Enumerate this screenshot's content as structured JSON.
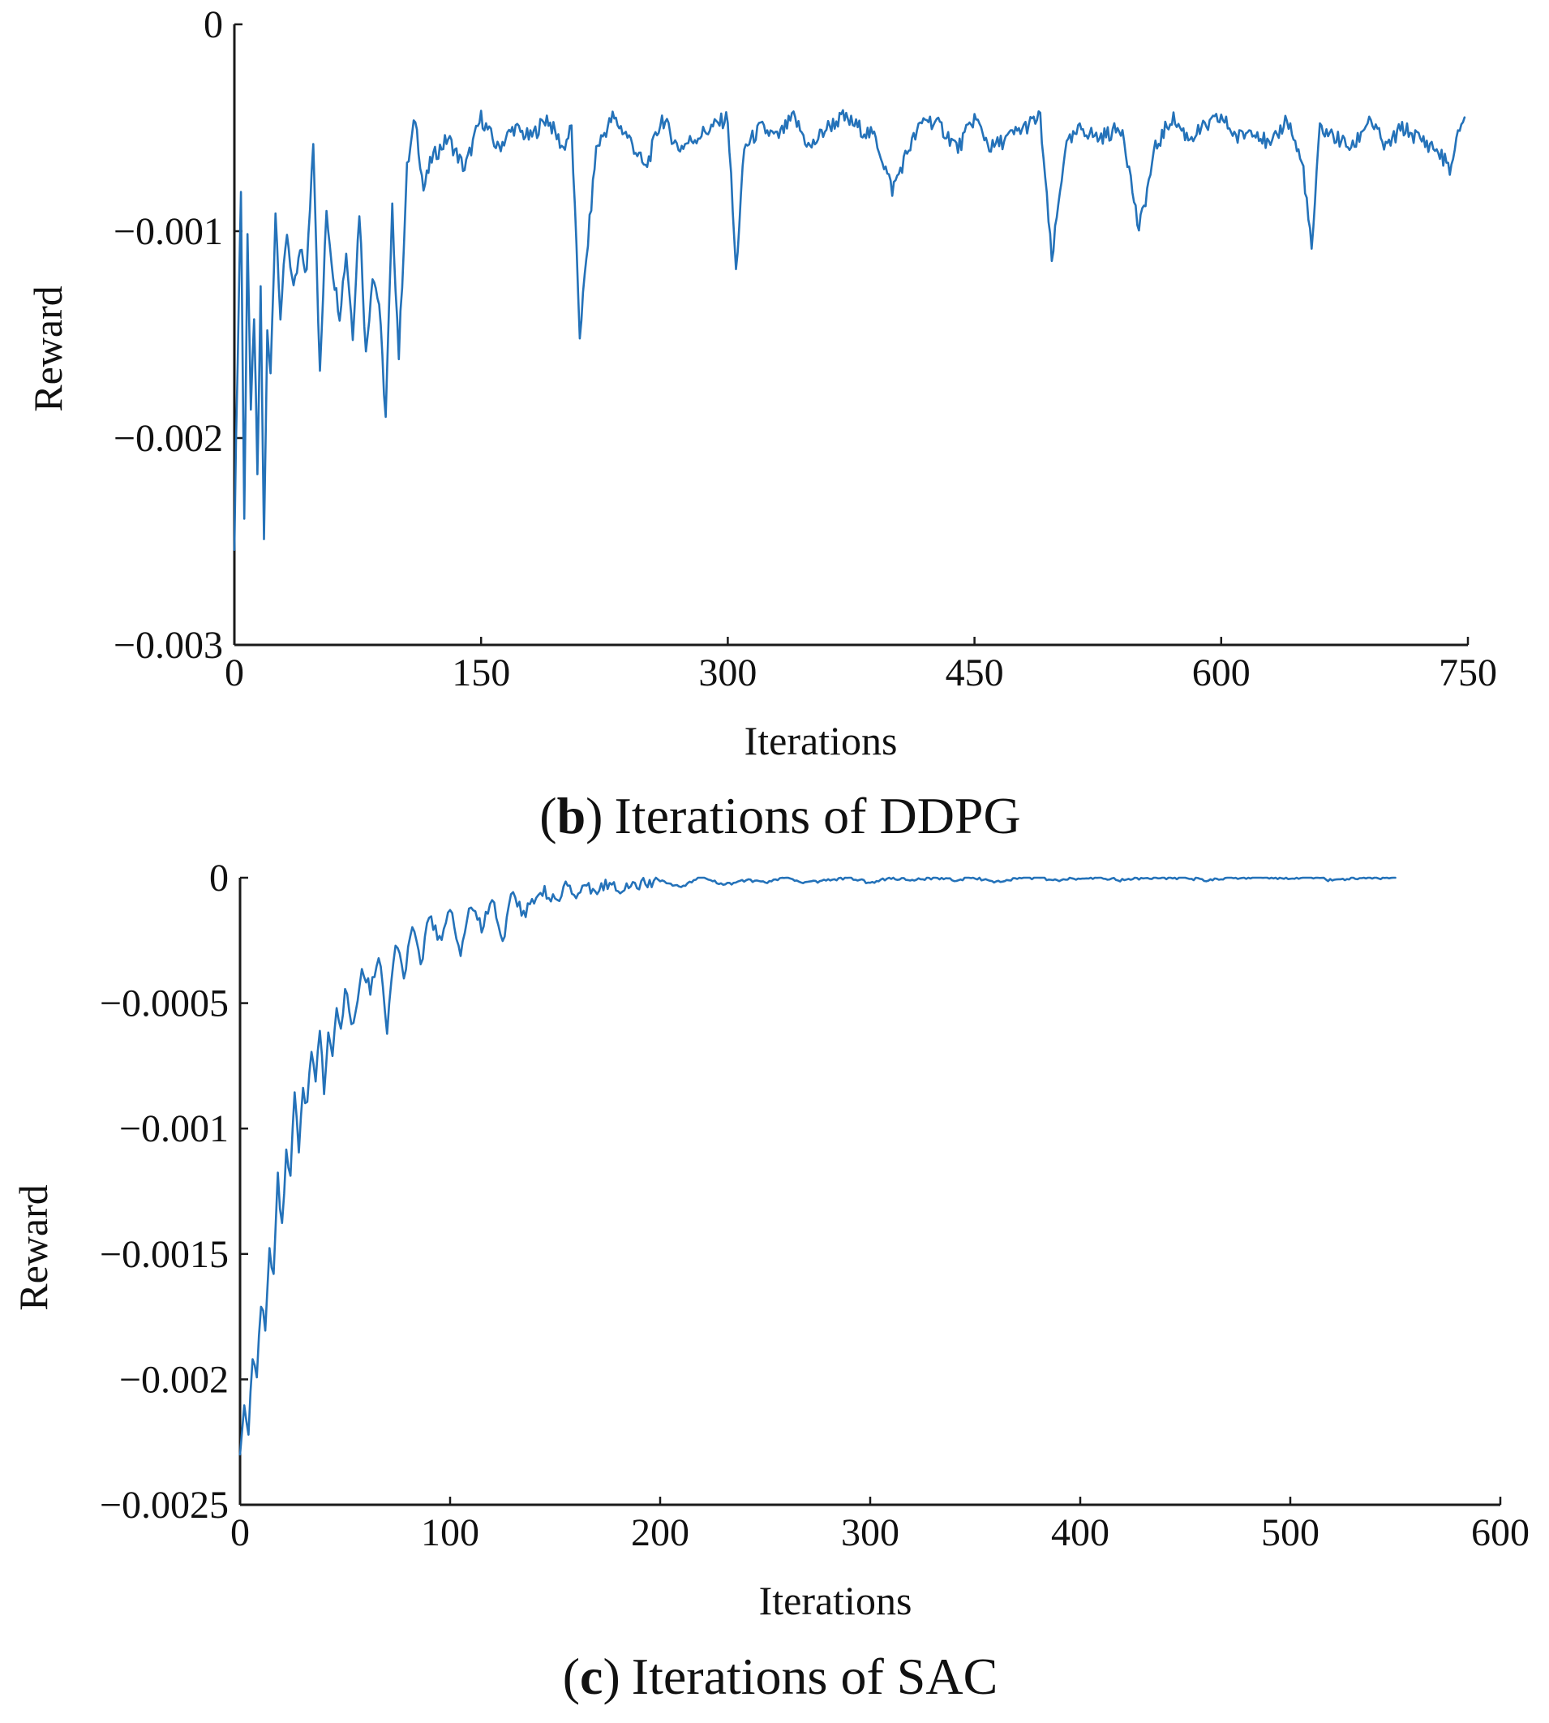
{
  "chart_data": [
    {
      "type": "line",
      "panel_letter": "b",
      "caption_paren_open": "(",
      "caption_paren_close": ")",
      "caption_text": "Iterations of DDPG",
      "title": "(b) Iterations of DDPG",
      "xlabel": "Iterations",
      "ylabel": "Reward",
      "xlim": [
        0,
        750
      ],
      "ylim": [
        -0.003,
        0
      ],
      "x_ticks": [
        0,
        150,
        300,
        450,
        600,
        750
      ],
      "x_tick_labels": [
        "0",
        "150",
        "300",
        "450",
        "600",
        "750"
      ],
      "y_ticks": [
        0,
        -0.001,
        -0.002,
        -0.003
      ],
      "y_tick_labels": [
        "0",
        "−0.001",
        "−0.002",
        "−0.003"
      ],
      "color": "#2472B9",
      "series": [
        {
          "name": "Reward",
          "x": [
            0,
            2,
            4,
            6,
            8,
            10,
            12,
            14,
            16,
            18,
            20,
            22,
            25,
            28,
            32,
            36,
            40,
            44,
            48,
            52,
            56,
            60,
            64,
            68,
            72,
            76,
            80,
            84,
            88,
            92,
            96,
            100,
            105,
            110,
            115,
            120,
            130,
            140,
            150,
            160,
            170,
            180,
            190,
            200,
            205,
            210,
            220,
            230,
            240,
            250,
            260,
            270,
            280,
            290,
            300,
            305,
            310,
            320,
            330,
            340,
            350,
            360,
            370,
            380,
            390,
            400,
            410,
            420,
            430,
            440,
            450,
            460,
            470,
            480,
            490,
            497,
            505,
            515,
            525,
            540,
            550,
            560,
            570,
            580,
            590,
            600,
            610,
            620,
            630,
            640,
            650,
            655,
            660,
            670,
            680,
            690,
            700,
            710,
            720,
            730,
            740,
            745,
            748
          ],
          "values": [
            -0.0025,
            -0.0016,
            -0.0008,
            -0.0024,
            -0.001,
            -0.0019,
            -0.0014,
            -0.0022,
            -0.0013,
            -0.0025,
            -0.0015,
            -0.0017,
            -0.0009,
            -0.0014,
            -0.001,
            -0.0013,
            -0.0011,
            -0.0012,
            -0.00055,
            -0.0017,
            -0.0009,
            -0.0012,
            -0.0014,
            -0.0011,
            -0.0015,
            -0.0009,
            -0.0016,
            -0.0012,
            -0.00135,
            -0.0019,
            -0.0009,
            -0.0016,
            -0.0007,
            -0.00045,
            -0.0008,
            -0.00065,
            -0.00055,
            -0.0007,
            -0.00045,
            -0.0006,
            -0.0005,
            -0.00055,
            -0.00045,
            -0.0006,
            -0.0005,
            -0.0015,
            -0.0006,
            -0.00045,
            -0.00055,
            -0.0007,
            -0.00045,
            -0.0006,
            -0.00055,
            -0.0005,
            -0.00045,
            -0.0012,
            -0.0006,
            -0.0005,
            -0.00055,
            -0.00045,
            -0.0006,
            -0.0005,
            -0.00045,
            -0.0005,
            -0.00055,
            -0.0008,
            -0.0006,
            -0.00045,
            -0.0005,
            -0.0006,
            -0.00045,
            -0.0006,
            -0.00055,
            -0.0005,
            -0.00045,
            -0.00115,
            -0.0006,
            -0.0005,
            -0.00055,
            -0.0005,
            -0.001,
            -0.0006,
            -0.00045,
            -0.00055,
            -0.0005,
            -0.00045,
            -0.00055,
            -0.0005,
            -0.0006,
            -0.00045,
            -0.0007,
            -0.0011,
            -0.0005,
            -0.00055,
            -0.0006,
            -0.00045,
            -0.0006,
            -0.0005,
            -0.00055,
            -0.0006,
            -0.0007,
            -0.0005,
            -0.00045
          ]
        }
      ]
    },
    {
      "type": "line",
      "panel_letter": "c",
      "caption_paren_open": "(",
      "caption_paren_close": ")",
      "caption_text": "Iterations of SAC",
      "title": "(c) Iterations of SAC",
      "xlabel": "Iterations",
      "ylabel": "Reward",
      "xlim": [
        0,
        600
      ],
      "ylim": [
        -0.0025,
        0
      ],
      "x_ticks": [
        0,
        100,
        200,
        300,
        400,
        500,
        600
      ],
      "x_tick_labels": [
        "0",
        "100",
        "200",
        "300",
        "400",
        "500",
        "600"
      ],
      "y_ticks": [
        0,
        -0.0005,
        -0.001,
        -0.0015,
        -0.002,
        -0.0025
      ],
      "y_tick_labels": [
        "0",
        "−0.0005",
        "−0.001",
        "−0.0015",
        "−0.002",
        "−0.0025"
      ],
      "color": "#2472B9",
      "series": [
        {
          "name": "Reward",
          "x": [
            0,
            2,
            4,
            6,
            8,
            10,
            12,
            14,
            16,
            18,
            20,
            22,
            24,
            26,
            28,
            30,
            32,
            34,
            36,
            38,
            40,
            42,
            44,
            46,
            48,
            50,
            54,
            58,
            62,
            66,
            70,
            74,
            78,
            82,
            86,
            90,
            95,
            100,
            105,
            110,
            115,
            120,
            125,
            130,
            135,
            140,
            145,
            150,
            155,
            160,
            165,
            170,
            175,
            180,
            190,
            200,
            210,
            220,
            230,
            240,
            250,
            260,
            270,
            280,
            290,
            300,
            310,
            320,
            330,
            340,
            350,
            360,
            370,
            380,
            390,
            400,
            410,
            420,
            430,
            440,
            450,
            460,
            470,
            480,
            490,
            500,
            510,
            520,
            530,
            540,
            550
          ],
          "values": [
            -0.0023,
            -0.0021,
            -0.0022,
            -0.0019,
            -0.002,
            -0.0017,
            -0.0018,
            -0.0015,
            -0.0016,
            -0.0012,
            -0.0014,
            -0.0011,
            -0.0012,
            -0.00085,
            -0.0011,
            -0.00085,
            -0.0009,
            -0.0007,
            -0.0008,
            -0.0006,
            -0.00085,
            -0.0006,
            -0.0007,
            -0.0005,
            -0.0006,
            -0.00045,
            -0.0006,
            -0.00035,
            -0.00045,
            -0.0003,
            -0.0006,
            -0.00025,
            -0.0004,
            -0.0002,
            -0.00035,
            -0.00015,
            -0.00025,
            -0.00012,
            -0.0003,
            -0.0001,
            -0.0002,
            -8e-05,
            -0.00025,
            -5e-05,
            -0.00015,
            -8e-05,
            -5e-05,
            -0.0001,
            -2e-05,
            -8e-05,
            -4e-05,
            -6e-05,
            -2e-05,
            -4e-05,
            -3e-05,
            -1e-05,
            -4e-05,
            1e-05,
            -3e-05,
            -1e-05,
            -2e-05,
            0,
            -2e-05,
            -1e-05,
            0,
            -2e-05,
            0,
            -1e-05,
            0,
            -1e-05,
            0,
            -2e-05,
            0,
            0,
            -1e-05,
            0,
            0,
            -1e-05,
            0,
            0,
            0,
            -1e-05,
            0,
            0,
            0,
            0,
            0,
            -1e-05,
            0,
            0,
            0
          ]
        }
      ]
    }
  ]
}
